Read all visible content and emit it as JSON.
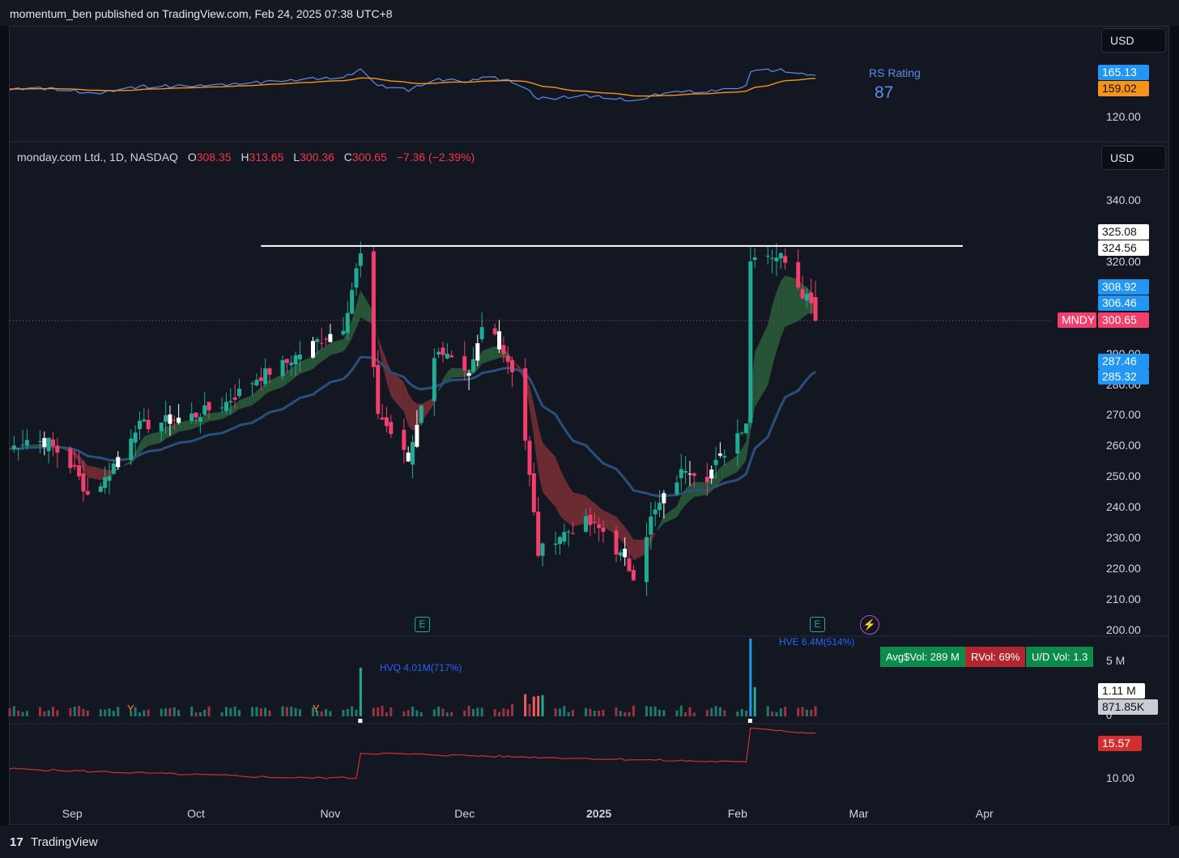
{
  "header": {
    "published": "momentum_ben published on TradingView.com, Feb 24, 2025 07:38 UTC+8"
  },
  "currency": "USD",
  "symbol": {
    "name": "monday.com Ltd., 1D, NASDAQ",
    "open_label": "O",
    "open": "308.35",
    "high_label": "H",
    "high": "313.65",
    "low_label": "L",
    "low": "300.36",
    "close_label": "C",
    "close": "300.65",
    "change": "−7.36 (−2.39%)",
    "ticker": "MNDY"
  },
  "rs_panel": {
    "title": "RS Rating",
    "rating": "87",
    "value_blue": "165.13",
    "value_orange": "159.02",
    "axis_tick": "120.00"
  },
  "price_axis": {
    "ticks": [
      "340.00",
      "320.00",
      "290.00",
      "280.00",
      "270.00",
      "260.00",
      "250.00",
      "240.00",
      "230.00",
      "220.00",
      "210.00",
      "200.00"
    ]
  },
  "price_tags": {
    "white_1": "325.08",
    "white_2": "324.56",
    "blue_1": "308.92",
    "blue_2": "306.46",
    "last": "300.65",
    "blue_3": "287.46",
    "blue_4": "285.32"
  },
  "volume_panel": {
    "hvq_label": "HVQ 4.01M(717%)",
    "hve_label": "HVE 6.4M(514%)",
    "avg_vol": "Avg$Vol: 289 M",
    "rvol": "RVol: 69%",
    "ud_vol": "U/D Vol: 1.3",
    "axis_5m": "5 M",
    "axis_0": "0",
    "tag_vol": "1.11 M",
    "tag_avg": "871.85K",
    "marker_y": "Y"
  },
  "bottom_panel": {
    "value_tag": "15.57",
    "axis_tick": "10.00"
  },
  "x_axis": {
    "labels": [
      "Sep",
      "Oct",
      "Nov",
      "Dec",
      "2025",
      "Feb",
      "Mar",
      "Apr"
    ]
  },
  "earnings_marker": "E",
  "footer": {
    "brand": "TradingView",
    "logo": "17"
  },
  "colors": {
    "up": "#22ab94",
    "down": "#f23f6d",
    "white_candle": "#ffffff",
    "rs_line": "#5b8def",
    "rs_ma": "#f7931a",
    "resistance": "#ffffff",
    "blue_tag": "#2196f3",
    "last_tag": "#f23f6d"
  },
  "chart_data": [
    {
      "type": "candlestick",
      "title": "monday.com Ltd., 1D, NASDAQ",
      "ylim": [
        200,
        345
      ],
      "x_range": [
        "2024-08-19",
        "2025-04-04"
      ],
      "resistance_level": 325,
      "ohlc_last": {
        "open": 308.35,
        "high": 313.65,
        "low": 300.36,
        "close": 300.65,
        "change": -7.36,
        "change_pct": -2.39
      },
      "anchor_closes": [
        [
          "2024-08-19",
          259
        ],
        [
          "2024-08-23",
          262
        ],
        [
          "2024-08-28",
          261
        ],
        [
          "2024-09-03",
          252
        ],
        [
          "2024-09-06",
          244
        ],
        [
          "2024-09-10",
          249
        ],
        [
          "2024-09-17",
          266
        ],
        [
          "2024-09-24",
          268
        ],
        [
          "2024-10-01",
          270
        ],
        [
          "2024-10-08",
          274
        ],
        [
          "2024-10-15",
          282
        ],
        [
          "2024-10-22",
          287
        ],
        [
          "2024-10-29",
          294
        ],
        [
          "2024-11-04",
          299
        ],
        [
          "2024-11-07",
          317
        ],
        [
          "2024-11-08",
          322
        ],
        [
          "2024-11-12",
          271
        ],
        [
          "2024-11-15",
          264
        ],
        [
          "2024-11-19",
          255
        ],
        [
          "2024-11-22",
          274
        ],
        [
          "2024-11-26",
          292
        ],
        [
          "2024-12-03",
          281
        ],
        [
          "2024-12-06",
          298
        ],
        [
          "2024-12-09",
          296
        ],
        [
          "2024-12-13",
          285
        ],
        [
          "2024-12-16",
          262
        ],
        [
          "2024-12-19",
          225
        ],
        [
          "2024-12-23",
          230
        ],
        [
          "2024-12-30",
          235
        ],
        [
          "2025-01-03",
          232
        ],
        [
          "2025-01-08",
          222
        ],
        [
          "2025-01-10",
          218
        ],
        [
          "2025-01-14",
          236
        ],
        [
          "2025-01-17",
          243
        ],
        [
          "2025-01-22",
          253
        ],
        [
          "2025-01-27",
          250
        ],
        [
          "2025-01-31",
          258
        ],
        [
          "2025-02-05",
          268
        ],
        [
          "2025-02-06",
          320
        ],
        [
          "2025-02-07",
          323
        ],
        [
          "2025-02-12",
          322
        ],
        [
          "2025-02-14",
          321
        ],
        [
          "2025-02-18",
          310
        ],
        [
          "2025-02-20",
          308
        ],
        [
          "2025-02-21",
          300.65
        ]
      ]
    },
    {
      "type": "line",
      "title": "RS Rating",
      "series": [
        {
          "name": "RS Rating",
          "last": 165.13
        },
        {
          "last": 159.02
        }
      ],
      "rating": 87
    },
    {
      "type": "bar",
      "title": "Volume",
      "annotations": [
        {
          "label": "HVQ 4.01M(717%)",
          "date": "2024-11-08",
          "value_m": 4.01
        },
        {
          "label": "HVE 6.4M(514%)",
          "date": "2025-02-06",
          "value_m": 6.4
        }
      ],
      "last_volume": "1.11 M",
      "average": "871.85K"
    },
    {
      "type": "line",
      "title": "",
      "last": 15.57,
      "axis_tick": 10.0
    }
  ]
}
